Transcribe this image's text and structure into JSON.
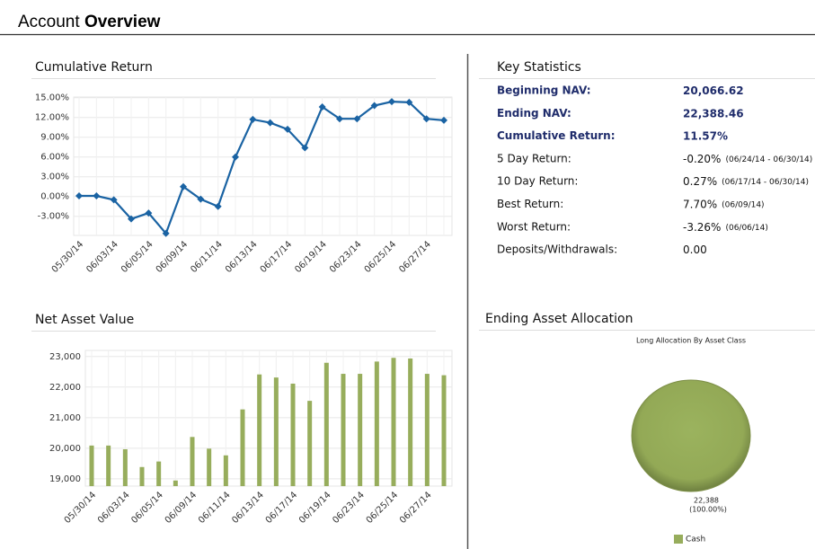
{
  "header": {
    "title": "Account",
    "title_bold": "Overview"
  },
  "key_statistics": {
    "title": "Key Statistics",
    "rows": [
      {
        "label": "Beginning NAV:",
        "value": "20,066.62"
      },
      {
        "label": "Ending NAV:",
        "value": "22,388.46"
      },
      {
        "label": "Cumulative Return:",
        "value": "11.57%"
      },
      {
        "label": "5 Day Return:",
        "value": "-0.20%",
        "period": "(06/24/14 - 06/30/14)"
      },
      {
        "label": "10 Day Return:",
        "value": "0.27%",
        "period": "(06/17/14 - 06/30/14)"
      },
      {
        "label": "Best Return:",
        "value": "7.70%",
        "period": "(06/09/14)"
      },
      {
        "label": "Worst Return:",
        "value": "-3.26%",
        "period": "(06/06/14)"
      },
      {
        "label": "Deposits/Withdrawals:",
        "value": "0.00"
      }
    ]
  },
  "chart_data": [
    {
      "type": "line",
      "title": "Cumulative Return",
      "color": "#1a63a3",
      "grid": true,
      "categories": [
        "05/30/14",
        null,
        "06/03/14",
        null,
        "06/05/14",
        null,
        "06/09/14",
        null,
        "06/11/14",
        null,
        "06/13/14",
        null,
        "06/17/14",
        null,
        "06/19/14",
        null,
        "06/23/14",
        null,
        "06/25/14",
        null,
        "06/27/14",
        null
      ],
      "values": [
        0.1,
        0.1,
        -0.5,
        -3.4,
        -2.5,
        -5.6,
        1.5,
        -0.4,
        -1.5,
        6.0,
        11.7,
        11.2,
        10.2,
        7.4,
        13.6,
        11.8,
        11.8,
        13.8,
        14.4,
        14.3,
        11.8,
        11.57
      ],
      "ylim": [
        -5.9,
        15.1
      ],
      "yticks": [
        {
          "value": -3,
          "label": "-3.00%"
        },
        {
          "value": 0,
          "label": "0.00%"
        },
        {
          "value": 3,
          "label": "3.00%"
        },
        {
          "value": 6,
          "label": "6.00%"
        },
        {
          "value": 9,
          "label": "9.00%"
        },
        {
          "value": 12,
          "label": "12.00%"
        },
        {
          "value": 15,
          "label": "15.00%"
        }
      ]
    },
    {
      "type": "bar",
      "title": "Net Asset Value",
      "color": "#97ad5c",
      "grid": true,
      "categories": [
        "05/30/14",
        null,
        "06/03/14",
        null,
        "06/05/14",
        null,
        "06/09/14",
        null,
        "06/11/14",
        null,
        "06/13/14",
        null,
        "06/17/14",
        null,
        "06/19/14",
        null,
        "06/23/14",
        null,
        "06/25/14",
        null,
        "06/27/14",
        null
      ],
      "values": [
        20087,
        20087,
        19966,
        19384,
        19565,
        18943,
        20368,
        19986,
        19766,
        21270,
        22414,
        22314,
        22113,
        21550,
        22796,
        22434,
        22434,
        22836,
        22957,
        22936,
        22434,
        22388
      ],
      "ylim": [
        18760,
        23200
      ],
      "yticks": [
        {
          "value": 19000,
          "label": "19,000"
        },
        {
          "value": 20000,
          "label": "20,000"
        },
        {
          "value": 21000,
          "label": "21,000"
        },
        {
          "value": 22000,
          "label": "22,000"
        },
        {
          "value": 23000,
          "label": "23,000"
        }
      ]
    },
    {
      "type": "pie",
      "title": "Ending Asset Allocation",
      "subtitle": "Long Allocation By Asset Class",
      "categories": [
        "Cash"
      ],
      "values": [
        22388
      ],
      "value_labels": [
        "22,388"
      ],
      "percents": [
        100
      ],
      "percent_labels": [
        "(100.00%)"
      ],
      "colors": [
        "#97ad5c"
      ]
    }
  ]
}
